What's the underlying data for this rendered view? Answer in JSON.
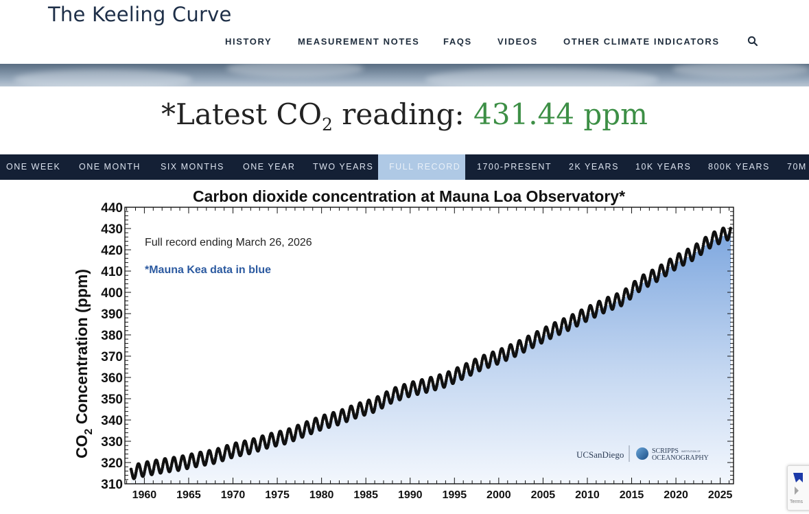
{
  "site": {
    "title": "The Keeling Curve"
  },
  "nav": {
    "items": [
      "HISTORY",
      "MEASUREMENT NOTES",
      "FAQS",
      "VIDEOS",
      "OTHER CLIMATE INDICATORS"
    ],
    "search_icon": "search-icon"
  },
  "reading": {
    "prefix": "*Latest CO",
    "subscript": "2",
    "middle": " reading: ",
    "value": "431.44 ppm",
    "value_color": "#3d8f46"
  },
  "tabs": {
    "items": [
      "ONE WEEK",
      "ONE MONTH",
      "SIX MONTHS",
      "ONE YEAR",
      "TWO YEARS",
      "FULL RECORD",
      "1700-PRESENT",
      "2K YEARS",
      "10K YEARS",
      "800K YEARS",
      "70M"
    ],
    "active": "FULL RECORD"
  },
  "chart_data": {
    "type": "scatter",
    "title": "Carbon dioxide concentration at Mauna Loa Observatory*",
    "ylabel_main": "CO",
    "ylabel_sub": "2",
    "ylabel_rest": " Concentration (ppm)",
    "xlabel": "",
    "note_record": "Full record ending March 26, 2026",
    "note_mauna_kea": "*Mauna Kea data in blue",
    "xlim": [
      1957.8,
      2026.5
    ],
    "ylim": [
      310,
      440
    ],
    "x_ticks": [
      1960,
      1965,
      1970,
      1975,
      1980,
      1985,
      1990,
      1995,
      2000,
      2005,
      2010,
      2015,
      2020,
      2025
    ],
    "y_ticks": [
      310,
      320,
      330,
      340,
      350,
      360,
      370,
      380,
      390,
      400,
      410,
      420,
      430,
      440
    ],
    "series": [
      {
        "x": [
          1958.5,
          1960,
          1962,
          1964,
          1966,
          1968,
          1970,
          1972,
          1974,
          1976,
          1978,
          1980,
          1982,
          1984,
          1986,
          1988,
          1990,
          1992,
          1994,
          1996,
          1998,
          2000,
          2002,
          2004,
          2006,
          2008,
          2010,
          2012,
          2014,
          2016,
          2018,
          2020,
          2022,
          2024,
          2026.2
        ],
        "y": [
          315.3,
          316.9,
          318.4,
          319.6,
          321.4,
          322.9,
          325.7,
          327.5,
          330.2,
          332.1,
          335.4,
          338.7,
          341.1,
          344.4,
          347.0,
          351.5,
          354.4,
          356.4,
          358.8,
          362.6,
          366.7,
          369.7,
          373.4,
          377.6,
          381.9,
          385.6,
          389.9,
          393.9,
          397.2,
          404.2,
          408.7,
          414.2,
          418.5,
          424.6,
          428.5
        ]
      }
    ],
    "seasonal_amplitude_ppm": 3.2,
    "fill_color": "#8eb3e4",
    "point_color": "#111111",
    "logos": {
      "ucsd": "UCSanDiego",
      "scripps_line1": "SCRIPPS",
      "scripps_small": "INSTITUTION OF",
      "scripps_line2": "OCEANOGRAPHY"
    }
  },
  "recaptcha": {
    "terms": "Terms"
  }
}
